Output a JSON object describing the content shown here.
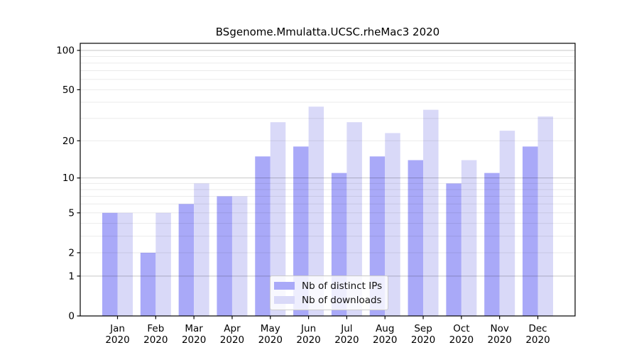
{
  "chart_data": {
    "type": "bar",
    "title": "BSgenome.Mmulatta.UCSC.rheMac3 2020",
    "categories": [
      "Jan 2020",
      "Feb 2020",
      "Mar 2020",
      "Apr 2020",
      "May 2020",
      "Jun 2020",
      "Jul 2020",
      "Aug 2020",
      "Sep 2020",
      "Oct 2020",
      "Nov 2020",
      "Dec 2020"
    ],
    "series": [
      {
        "name": "Nb of distinct IPs",
        "color": "#a9a9f8",
        "values": [
          5,
          2,
          6,
          7,
          15,
          18,
          11,
          15,
          14,
          9,
          11,
          18
        ]
      },
      {
        "name": "Nb of downloads",
        "color": "#d9d9f8",
        "values": [
          5,
          5,
          9,
          7,
          28,
          37,
          28,
          23,
          35,
          14,
          24,
          31
        ]
      }
    ],
    "xlabel": "",
    "ylabel": "",
    "yscale": "log10(1+x)",
    "yticks": [
      0,
      1,
      2,
      5,
      10,
      20,
      50,
      100
    ],
    "ylim": [
      0,
      113
    ],
    "grid": "horizontal major+minor log gridlines",
    "legend_position": "lower center inside plot",
    "colors": {
      "axis": "#000000",
      "grid_major": "rgba(0,0,0,0.22)",
      "grid_minor": "rgba(0,0,0,0.08)",
      "background": "#ffffff"
    }
  }
}
